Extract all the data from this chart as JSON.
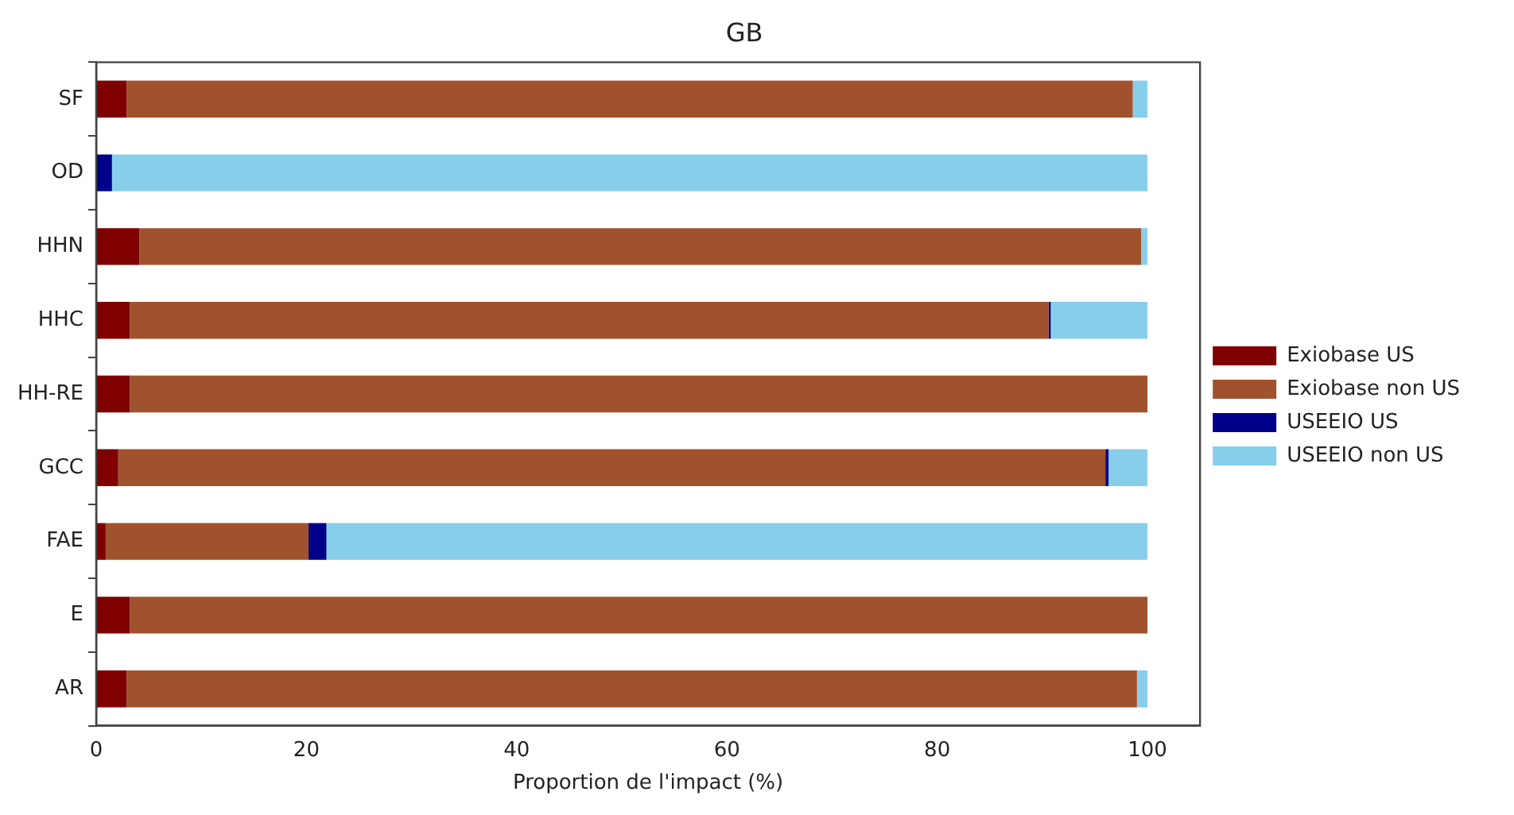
{
  "chart_data": {
    "type": "bar",
    "orientation": "horizontal",
    "stacked": true,
    "title": "GB",
    "xlabel": "Proportion de l'impact (%)",
    "categories": [
      "SF",
      "OD",
      "HHN",
      "HHC",
      "HH-RE",
      "GCC",
      "FAE",
      "E",
      "AR"
    ],
    "series": [
      {
        "name": "Exiobase US",
        "color": "#800000",
        "values": [
          2.9,
          0,
          4.1,
          3.2,
          3.2,
          2.1,
          0.9,
          3.2,
          2.9
        ]
      },
      {
        "name": "Exiobase non US",
        "color": "#a0522d",
        "values": [
          95.7,
          0,
          95.3,
          87.4,
          96.8,
          93.9,
          19.3,
          96.8,
          96.1
        ]
      },
      {
        "name": "USEEIO US",
        "color": "#00008b",
        "values": [
          0,
          1.5,
          0,
          0.2,
          0,
          0.3,
          1.7,
          0,
          0
        ]
      },
      {
        "name": "USEEIO non US",
        "color": "#87ceeb",
        "values": [
          1.4,
          98.5,
          0.6,
          9.2,
          0,
          3.7,
          78.1,
          0,
          1.0
        ]
      }
    ],
    "xlim": [
      0,
      105
    ],
    "xticks": [
      0,
      20,
      40,
      60,
      80,
      100
    ],
    "grid": false,
    "legend": "right"
  }
}
